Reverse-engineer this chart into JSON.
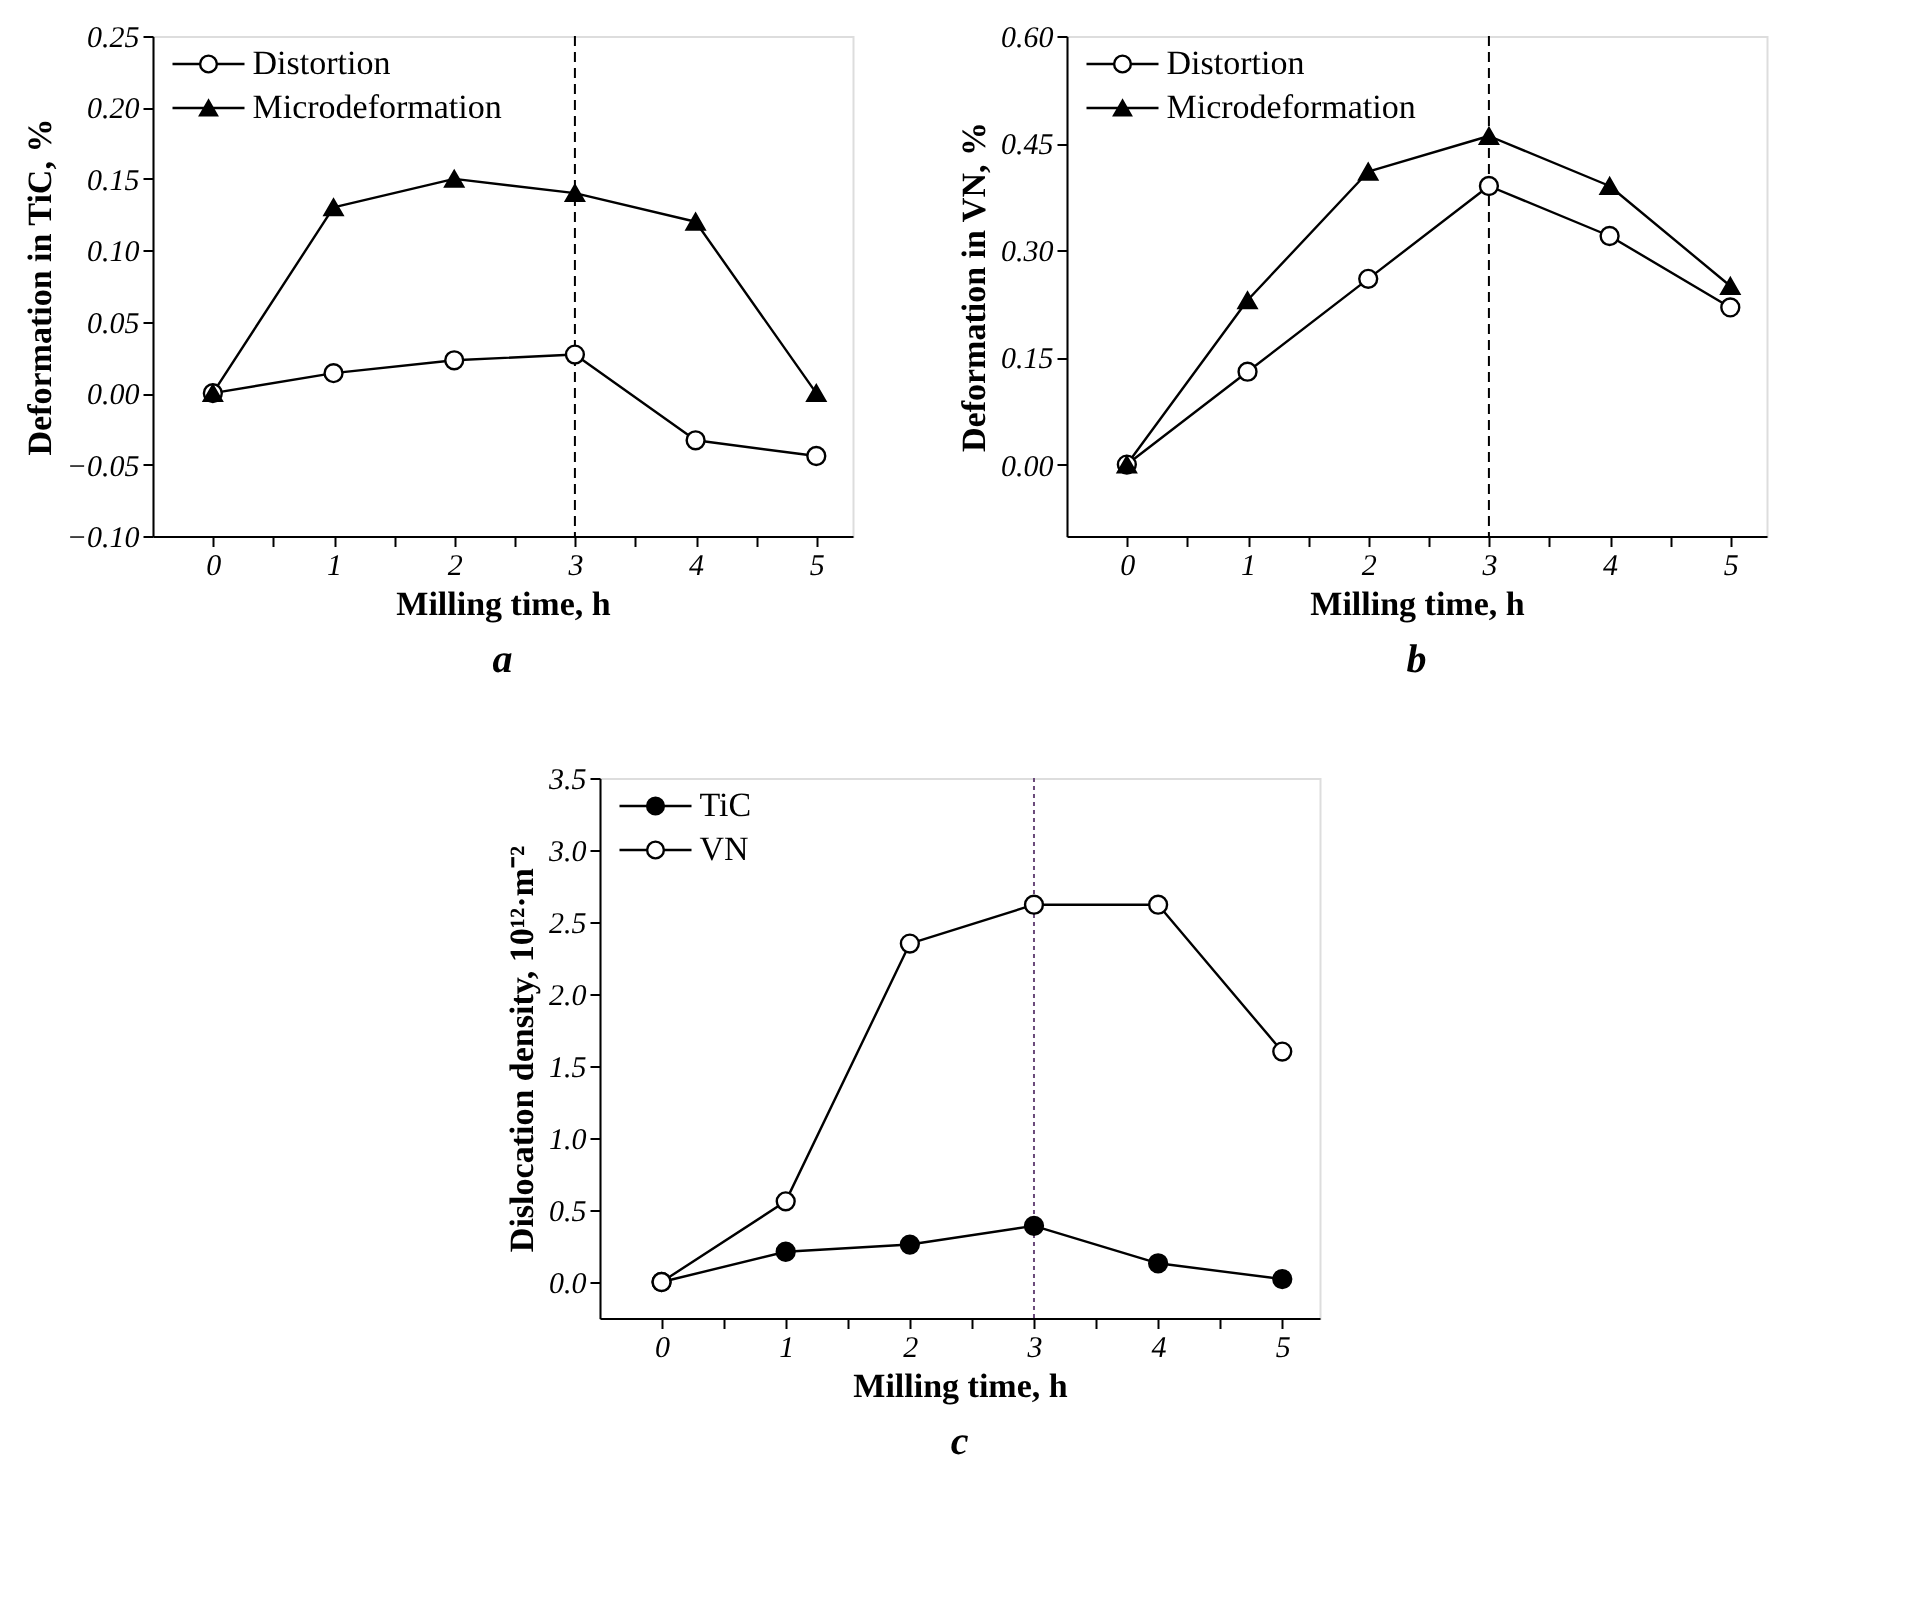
{
  "chart_data": [
    {
      "type": "line",
      "xlabel": "Milling time, h",
      "ylabel": "Deformation in TiC, %",
      "annotations": [
        "a"
      ],
      "x": [
        0,
        1,
        2,
        3,
        4,
        5
      ],
      "xlim": [
        -0.5,
        5.3
      ],
      "xticks": [
        0,
        {
          "value": 0.5,
          "label": null
        },
        1,
        {
          "value": 1.5,
          "label": null
        },
        2,
        {
          "value": 2.5,
          "label": null
        },
        3,
        {
          "value": 3.5,
          "label": null
        },
        4,
        {
          "value": 4.5,
          "label": null
        },
        5
      ],
      "ylim": [
        -0.1,
        0.25
      ],
      "yticks": [
        {
          "value": -0.1,
          "label": "−0.10"
        },
        {
          "value": -0.05,
          "label": "−0.05"
        },
        {
          "value": 0,
          "label": "0.00"
        },
        {
          "value": 0.05,
          "label": "0.05"
        },
        {
          "value": 0.1,
          "label": "0.10"
        },
        {
          "value": 0.15,
          "label": "0.15"
        },
        {
          "value": 0.2,
          "label": "0.20"
        },
        {
          "value": 0.25,
          "label": "0.25"
        }
      ],
      "legend": "top left",
      "grid": false,
      "line_style": "solid",
      "ref_lines": [
        {
          "axis": "x",
          "value": 3,
          "line_style": "dashed",
          "color": "#000000"
        }
      ],
      "series": [
        {
          "name": "Distortion",
          "color": "#000000",
          "marker": "circle",
          "values": [
            0,
            0.014,
            0.023,
            0.027,
            -0.033,
            -0.044
          ]
        },
        {
          "name": "Microdeformation",
          "color": "#000000",
          "marker": "triangle",
          "values": [
            0,
            0.13,
            0.15,
            0.14,
            0.12,
            0
          ]
        }
      ]
    },
    {
      "type": "line",
      "xlabel": "Milling time, h",
      "ylabel": "Deformation in VN, %",
      "annotations": [
        "b"
      ],
      "x": [
        0,
        1,
        2,
        3,
        4,
        5
      ],
      "xlim": [
        -0.5,
        5.3
      ],
      "xticks": [
        0,
        {
          "value": 0.5,
          "label": null
        },
        1,
        {
          "value": 1.5,
          "label": null
        },
        2,
        {
          "value": 2.5,
          "label": null
        },
        3,
        {
          "value": 3.5,
          "label": null
        },
        4,
        {
          "value": 4.5,
          "label": null
        },
        5
      ],
      "ylim": [
        -0.1,
        0.6
      ],
      "yticks": [
        {
          "value": 0,
          "label": "0.00"
        },
        {
          "value": 0.15,
          "label": "0.15"
        },
        {
          "value": 0.3,
          "label": "0.30"
        },
        {
          "value": 0.45,
          "label": "0.45"
        },
        {
          "value": 0.6,
          "label": "0.60"
        }
      ],
      "legend": "top left",
      "grid": false,
      "line_style": "solid",
      "ref_lines": [
        {
          "axis": "x",
          "value": 3,
          "line_style": "dashed",
          "color": "#000000"
        }
      ],
      "series": [
        {
          "name": "Distortion",
          "color": "#000000",
          "marker": "circle",
          "values": [
            0,
            0.13,
            0.26,
            0.39,
            0.32,
            0.22
          ]
        },
        {
          "name": "Microdeformation",
          "color": "#000000",
          "marker": "triangle",
          "values": [
            0,
            0.23,
            0.41,
            0.46,
            0.39,
            0.25
          ]
        }
      ]
    },
    {
      "type": "line",
      "xlabel": "Milling time, h",
      "ylabel": "Dislocation density, 10¹²·m⁻²",
      "annotations": [
        "c"
      ],
      "x": [
        0,
        1,
        2,
        3,
        4,
        5
      ],
      "xlim": [
        -0.5,
        5.3
      ],
      "xticks": [
        0,
        {
          "value": 0.5,
          "label": null
        },
        1,
        {
          "value": 1.5,
          "label": null
        },
        2,
        {
          "value": 2.5,
          "label": null
        },
        3,
        {
          "value": 3.5,
          "label": null
        },
        4,
        {
          "value": 4.5,
          "label": null
        },
        5
      ],
      "ylim": [
        -0.25,
        3.5
      ],
      "yticks": [
        {
          "value": 0,
          "label": "0.0"
        },
        {
          "value": 0.5,
          "label": "0.5"
        },
        {
          "value": 1,
          "label": "1.0"
        },
        {
          "value": 1.5,
          "label": "1.5"
        },
        {
          "value": 2,
          "label": "2.0"
        },
        {
          "value": 2.5,
          "label": "2.5"
        },
        {
          "value": 3,
          "label": "3.0"
        },
        {
          "value": 3.5,
          "label": "3.5"
        }
      ],
      "legend": "top left",
      "grid": false,
      "line_style": "solid",
      "ref_lines": [
        {
          "axis": "x",
          "value": 3,
          "line_style": "dotted",
          "color": "#6a4a7a"
        }
      ],
      "series": [
        {
          "name": "TiC",
          "color": "#000000",
          "marker": "circle",
          "values": [
            0,
            0.21,
            0.26,
            0.39,
            0.13,
            0.02
          ]
        },
        {
          "name": "VN",
          "color": "#000000",
          "marker": "circle",
          "values": [
            0,
            0.56,
            2.35,
            2.62,
            2.62,
            1.6
          ]
        }
      ]
    }
  ]
}
